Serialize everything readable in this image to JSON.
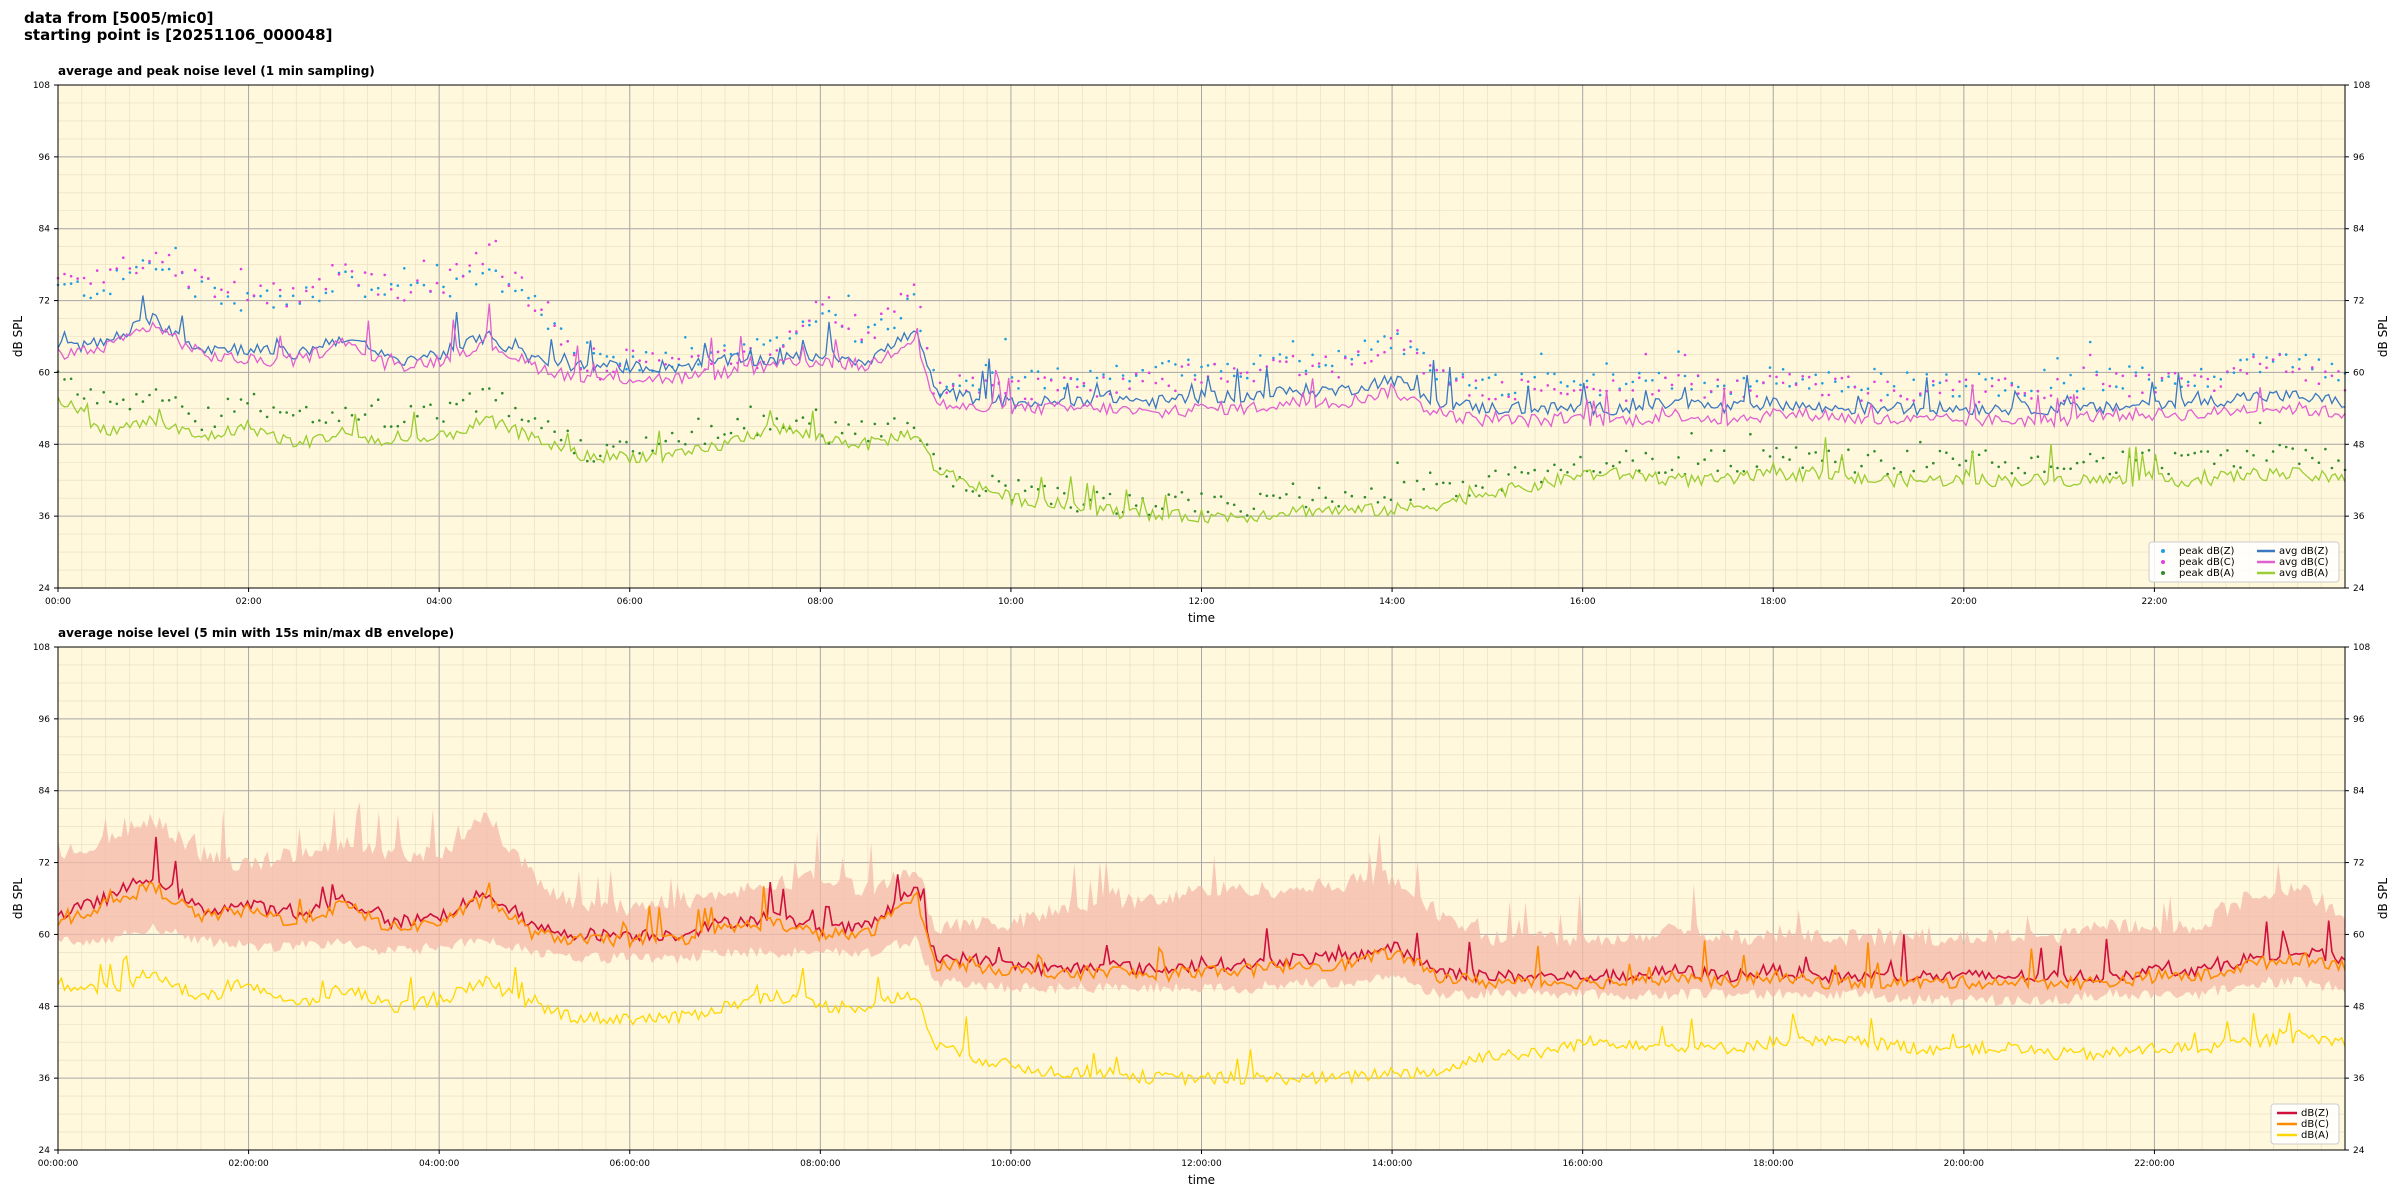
{
  "header": {
    "line1": "data from [5005/mic0]",
    "line2": "starting point is [20251106_000048]"
  },
  "chart_data": [
    {
      "type": "line",
      "title": "average and peak noise level (1 min sampling)",
      "xlabel": "time",
      "ylabel": "dB SPL",
      "ylim": [
        24,
        108
      ],
      "xlim": [
        0,
        24
      ],
      "yticks": [
        "24",
        "36",
        "48",
        "60",
        "72",
        "84",
        "96",
        "108"
      ],
      "xtick_labels": [
        "00:00",
        "02:00",
        "04:00",
        "06:00",
        "08:00",
        "10:00",
        "12:00",
        "14:00",
        "16:00",
        "18:00",
        "20:00",
        "22:00"
      ],
      "grid": true,
      "legend_position": "lower-right",
      "x_unit": "hours",
      "x": [
        0,
        0.5,
        1,
        1.5,
        2,
        2.5,
        3,
        3.5,
        4,
        4.5,
        5,
        5.5,
        6,
        6.5,
        7,
        7.5,
        8,
        8.5,
        9,
        9.2,
        9.5,
        10,
        10.5,
        11,
        11.5,
        12,
        12.5,
        13,
        13.5,
        14,
        14.5,
        15,
        15.5,
        16,
        16.5,
        17,
        17.5,
        18,
        18.5,
        19,
        19.5,
        20,
        20.5,
        21,
        21.5,
        22,
        22.5,
        23,
        23.5,
        24
      ],
      "series": [
        {
          "name": "peak dB(Z)",
          "style": "dots",
          "color": "#1f9fe0",
          "values": [
            74,
            74,
            79,
            74,
            72,
            72,
            75,
            73,
            73,
            77,
            71,
            61,
            62,
            62,
            63,
            64,
            70,
            66,
            72,
            58,
            59,
            58,
            59,
            60,
            60,
            61,
            61,
            62,
            62,
            66,
            60,
            58,
            58,
            58,
            58,
            59,
            58,
            59,
            59,
            58,
            58,
            58,
            58,
            58,
            59,
            59,
            59,
            62,
            62,
            60
          ]
        },
        {
          "name": "peak dB(C)",
          "style": "dots",
          "color": "#e040e0",
          "values": [
            75,
            76,
            80,
            75,
            73,
            73,
            77,
            74,
            74,
            80,
            72,
            60,
            62,
            61,
            62,
            63,
            72,
            66,
            74,
            57,
            58,
            57,
            58,
            58,
            58,
            60,
            60,
            61,
            61,
            66,
            59,
            57,
            57,
            57,
            57,
            58,
            57,
            58,
            58,
            57,
            57,
            57,
            57,
            57,
            58,
            58,
            58,
            61,
            61,
            59
          ]
        },
        {
          "name": "peak dB(A)",
          "style": "dots",
          "color": "#2e8b2e",
          "values": [
            60,
            55,
            56,
            52,
            55,
            52,
            54,
            52,
            53,
            56,
            52,
            47,
            47,
            48,
            50,
            52,
            50,
            50,
            52,
            44,
            42,
            40,
            39,
            38,
            38,
            38,
            38,
            39,
            39,
            40,
            40,
            42,
            43,
            45,
            45,
            45,
            45,
            46,
            46,
            45,
            45,
            45,
            45,
            45,
            45,
            45,
            45,
            46,
            46,
            45
          ]
        },
        {
          "name": "avg dB(Z)",
          "style": "line",
          "color": "#3a78c2",
          "values": [
            64,
            65,
            69,
            64,
            64,
            63,
            66,
            62,
            63,
            66,
            62,
            61,
            61,
            61,
            62,
            62,
            63,
            62,
            67,
            57,
            56,
            55,
            55,
            56,
            55,
            56,
            56,
            57,
            57,
            59,
            55,
            54,
            54,
            54,
            54,
            55,
            54,
            55,
            54,
            54,
            54,
            54,
            54,
            54,
            54,
            55,
            55,
            56,
            56,
            55
          ]
        },
        {
          "name": "avg dB(C)",
          "style": "line",
          "color": "#e060d0",
          "values": [
            63,
            64,
            68,
            63,
            62,
            62,
            65,
            61,
            62,
            65,
            61,
            59,
            59,
            59,
            60,
            61,
            62,
            61,
            66,
            55,
            54,
            54,
            54,
            54,
            53,
            54,
            54,
            55,
            55,
            57,
            53,
            52,
            52,
            52,
            52,
            53,
            52,
            53,
            53,
            52,
            52,
            52,
            52,
            52,
            53,
            53,
            53,
            54,
            54,
            53
          ]
        },
        {
          "name": "avg dB(A)",
          "style": "line",
          "color": "#9acd32",
          "values": [
            56,
            50,
            52,
            49,
            51,
            48,
            50,
            48,
            49,
            52,
            49,
            46,
            46,
            46,
            48,
            51,
            49,
            48,
            50,
            44,
            42,
            39,
            38,
            37,
            36,
            36,
            36,
            37,
            37,
            37,
            38,
            40,
            41,
            43,
            43,
            42,
            42,
            43,
            43,
            42,
            42,
            42,
            42,
            42,
            42,
            42,
            42,
            43,
            43,
            42
          ]
        }
      ]
    },
    {
      "type": "line",
      "title": "average noise level (5 min with 15s min/max dB envelope)",
      "xlabel": "time",
      "ylabel": "dB SPL",
      "ylim": [
        24,
        108
      ],
      "xlim": [
        0,
        24
      ],
      "yticks": [
        "24",
        "36",
        "48",
        "60",
        "72",
        "84",
        "96",
        "108"
      ],
      "xtick_labels": [
        "00:00:00",
        "02:00:00",
        "04:00:00",
        "06:00:00",
        "08:00:00",
        "10:00:00",
        "12:00:00",
        "14:00:00",
        "16:00:00",
        "18:00:00",
        "20:00:00",
        "22:00:00"
      ],
      "grid": true,
      "legend_position": "lower-right",
      "x_unit": "hours",
      "envelope": {
        "color": "#f4b8a8",
        "upper": [
          72,
          74,
          78,
          72,
          70,
          72,
          74,
          72,
          72,
          78,
          68,
          63,
          63,
          64,
          65,
          67,
          68,
          66,
          70,
          60,
          60,
          60,
          63,
          64,
          64,
          66,
          66,
          66,
          67,
          68,
          62,
          58,
          58,
          58,
          58,
          60,
          58,
          58,
          58,
          58,
          58,
          58,
          58,
          58,
          60,
          60,
          60,
          65,
          66,
          62
        ],
        "lower": [
          60,
          60,
          62,
          60,
          59,
          59,
          60,
          58,
          59,
          60,
          58,
          57,
          57,
          57,
          58,
          58,
          58,
          58,
          60,
          53,
          53,
          52,
          52,
          52,
          52,
          52,
          52,
          53,
          53,
          54,
          51,
          51,
          51,
          51,
          51,
          51,
          51,
          51,
          51,
          51,
          50,
          50,
          50,
          50,
          51,
          51,
          51,
          53,
          53,
          52
        ]
      },
      "x": [
        0,
        0.5,
        1,
        1.5,
        2,
        2.5,
        3,
        3.5,
        4,
        4.5,
        5,
        5.5,
        6,
        6.5,
        7,
        7.5,
        8,
        8.5,
        9,
        9.2,
        9.5,
        10,
        10.5,
        11,
        11.5,
        12,
        12.5,
        13,
        13.5,
        14,
        14.5,
        15,
        15.5,
        16,
        16.5,
        17,
        17.5,
        18,
        18.5,
        19,
        19.5,
        20,
        20.5,
        21,
        21.5,
        22,
        22.5,
        23,
        23.5,
        24
      ],
      "series": [
        {
          "name": "dB(Z)",
          "color": "#d0103c",
          "values": [
            63,
            66,
            70,
            64,
            65,
            63,
            66,
            62,
            63,
            67,
            61,
            60,
            60,
            60,
            62,
            63,
            61,
            61,
            68,
            56,
            56,
            55,
            54,
            55,
            54,
            55,
            55,
            56,
            56,
            58,
            54,
            53,
            53,
            53,
            53,
            54,
            53,
            54,
            53,
            53,
            53,
            53,
            53,
            53,
            53,
            54,
            54,
            56,
            57,
            56
          ]
        },
        {
          "name": "dB(C)",
          "color": "#ff8c00",
          "values": [
            62,
            65,
            68,
            63,
            64,
            62,
            65,
            61,
            62,
            66,
            60,
            59,
            59,
            59,
            61,
            62,
            60,
            60,
            67,
            55,
            55,
            54,
            53,
            54,
            53,
            54,
            54,
            55,
            55,
            57,
            53,
            52,
            52,
            52,
            52,
            53,
            52,
            53,
            52,
            52,
            52,
            52,
            52,
            52,
            52,
            53,
            53,
            55,
            56,
            55
          ]
        },
        {
          "name": "dB(A)",
          "color": "#ffd700",
          "values": [
            52,
            50,
            54,
            49,
            52,
            48,
            51,
            48,
            49,
            52,
            48,
            46,
            46,
            46,
            48,
            50,
            48,
            48,
            50,
            42,
            40,
            38,
            37,
            37,
            36,
            36,
            36,
            36,
            36,
            37,
            37,
            40,
            40,
            42,
            42,
            41,
            41,
            42,
            42,
            42,
            41,
            41,
            41,
            40,
            40,
            41,
            41,
            42,
            43,
            42
          ]
        }
      ]
    }
  ]
}
